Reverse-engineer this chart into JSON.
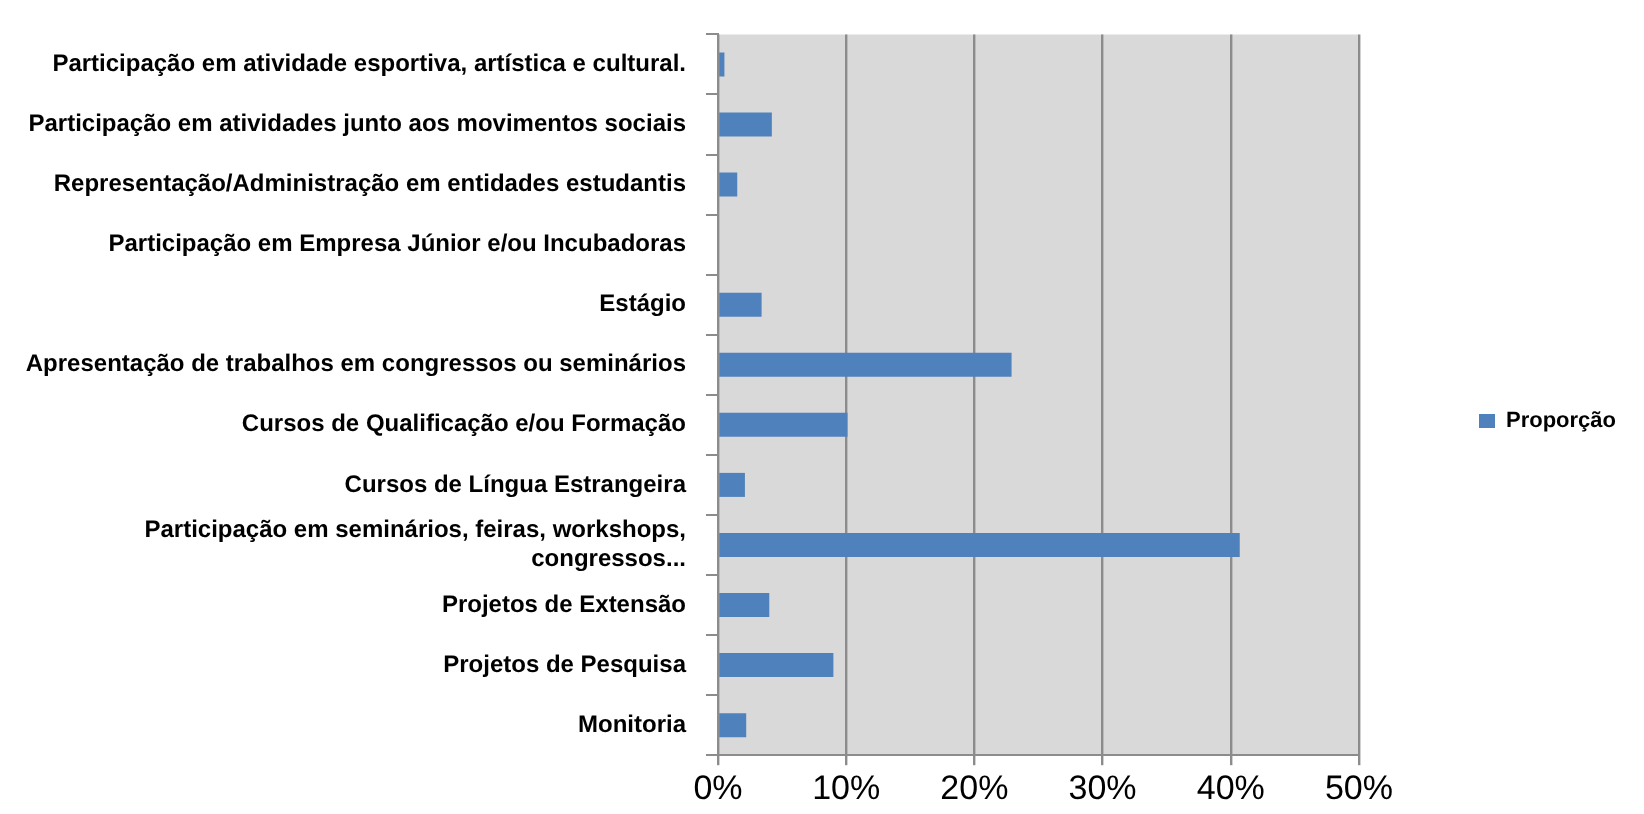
{
  "chart_data": {
    "type": "bar",
    "orientation": "horizontal",
    "categories": [
      "Participação em atividade esportiva, artística e cultural.",
      "Participação em atividades junto aos movimentos sociais",
      "Representação/Administração em entidades estudantis",
      "Participação em Empresa Júnior e/ou Incubadoras",
      "Estágio",
      "Apresentação de trabalhos em congressos ou seminários",
      "Cursos de Qualificação e/ou Formação",
      "Cursos de Língua Estrangeira",
      "Participação em seminários, feiras, workshops, congressos...",
      "Projetos de Extensão",
      "Projetos de Pesquisa",
      "Monitoria"
    ],
    "series": [
      {
        "name": "Proporção",
        "color": "#4f81bd",
        "values": [
          0.5,
          4.2,
          1.5,
          0,
          3.4,
          22.9,
          10.1,
          2.1,
          40.7,
          4.0,
          9.0,
          2.2
        ]
      }
    ],
    "xlim": [
      0,
      50
    ],
    "xticks": [
      {
        "value": 0,
        "label": "0%"
      },
      {
        "value": 10,
        "label": "10%"
      },
      {
        "value": 20,
        "label": "20%"
      },
      {
        "value": 30,
        "label": "30%"
      },
      {
        "value": 40,
        "label": "40%"
      },
      {
        "value": 50,
        "label": "50%"
      }
    ],
    "grid": "x",
    "legend": "right"
  }
}
